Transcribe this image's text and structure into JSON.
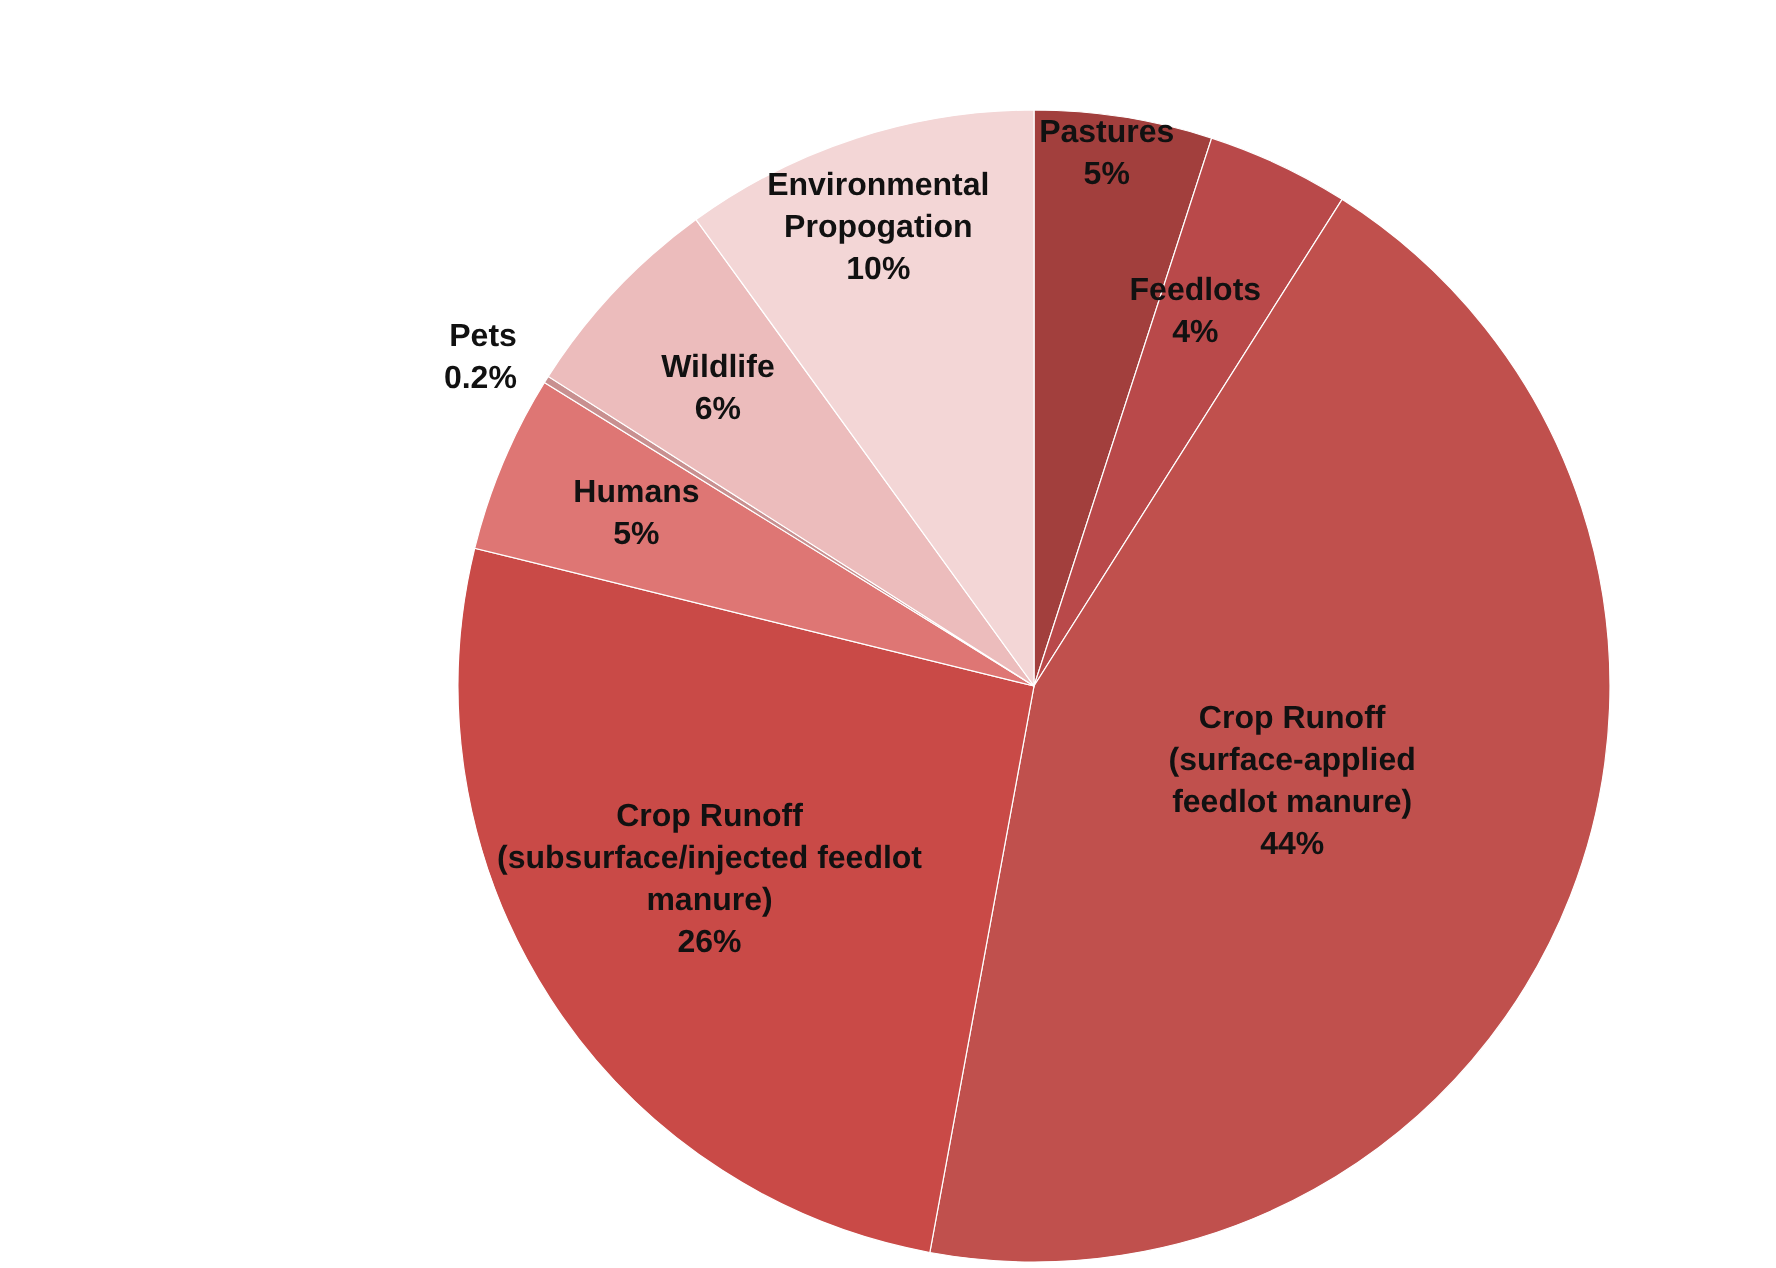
{
  "chart_data": {
    "type": "pie",
    "categories": [
      "Pastures",
      "Feedlots",
      "Crop Runoff (surface-applied feedlot manure)",
      "Crop Runoff (subsurface/injected feedlot manure)",
      "Humans",
      "Pets",
      "Wildlife",
      "Environmental Propogation"
    ],
    "values": [
      5,
      4,
      44,
      26,
      5,
      0.2,
      6,
      10
    ],
    "value_labels": [
      "5%",
      "4%",
      "44%",
      "26%",
      "5%",
      "0.2%",
      "6%",
      "10%"
    ],
    "colors": [
      "#a23f3d",
      "#b9494a",
      "#c0504d",
      "#c94a47",
      "#de7674",
      "#c89090",
      "#ecbcbc",
      "#f3d6d6"
    ],
    "legend": false
  }
}
